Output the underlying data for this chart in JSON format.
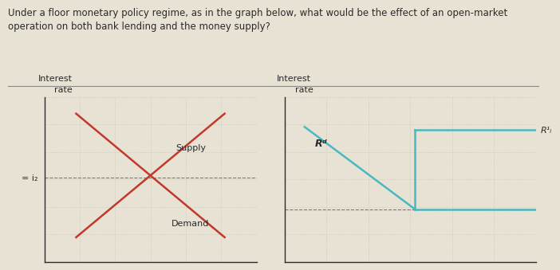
{
  "bg_color": "#e8e2d5",
  "text_color": "#2a2a2a",
  "title_text": "Under a floor monetary policy regime, as in the graph below, what would be the effect of an open-market\noperation on both bank lending and the money supply?",
  "title_fontsize": 8.5,
  "grid_color": "#c5bfb0",
  "left_ylabel_line1": "Interest",
  "left_ylabel_line2": "  rate",
  "right_ylabel_line1": "Interest",
  "right_ylabel_line2": "  rate",
  "left_supply_label": "Supply",
  "left_demand_label": "Demand",
  "left_floor_label": "= i₂",
  "right_rd_label": "Rᵈ",
  "right_r1_label": "R¹ᵢ",
  "red_color": "#c0392b",
  "cyan_color": "#4ab8c1",
  "dashed_color": "#7a7a7a",
  "separator_color": "#888880"
}
